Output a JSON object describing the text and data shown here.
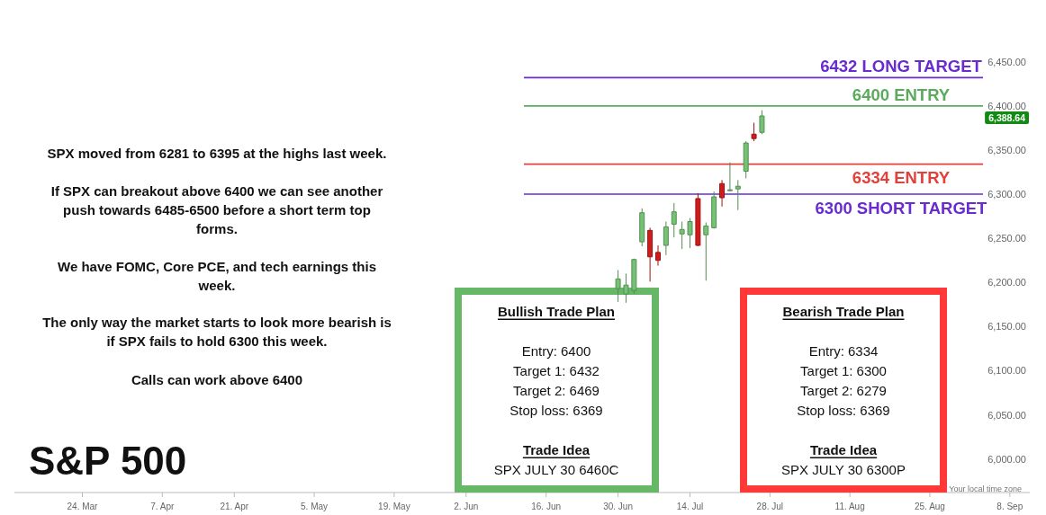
{
  "chart_data": {
    "type": "candlestick",
    "title": "S&P 500",
    "categories": [
      null,
      null,
      null,
      null,
      null,
      null,
      null,
      null,
      "24. Mar",
      null,
      null,
      null,
      null,
      null,
      null,
      null,
      null,
      null,
      "7. Apr",
      null,
      null,
      null,
      null,
      null,
      null,
      null,
      null,
      "21. Apr",
      null,
      null,
      null,
      null,
      null,
      null,
      null,
      null,
      null,
      "5. May",
      null,
      null,
      null,
      null,
      null,
      null,
      null,
      null,
      null,
      "19. May",
      null,
      null,
      null,
      null,
      null,
      null,
      null,
      null,
      "2. Jun",
      null,
      null,
      null,
      null,
      null,
      null,
      null,
      null,
      null,
      "16. Jun",
      null,
      null,
      null,
      null,
      null,
      null,
      null,
      null,
      "30. Jun",
      null,
      null,
      null,
      null,
      null,
      null,
      null,
      null,
      "14. Jul",
      null,
      null,
      null,
      null,
      null,
      null,
      null,
      null,
      null,
      "28. Jul",
      null,
      null,
      null,
      null,
      null,
      null,
      null,
      null,
      null,
      "11. Aug",
      null,
      null,
      null,
      null,
      null,
      null,
      null,
      null,
      null,
      "25. Aug",
      null,
      null,
      null,
      null,
      null,
      null,
      null,
      null,
      null,
      "8. Sep",
      null,
      null
    ],
    "ohlc": [
      null,
      null,
      null,
      null,
      null,
      null,
      null,
      null,
      null,
      null,
      null,
      null,
      null,
      null,
      null,
      null,
      null,
      null,
      null,
      null,
      null,
      null,
      null,
      null,
      null,
      null,
      null,
      null,
      null,
      null,
      null,
      null,
      null,
      null,
      null,
      null,
      null,
      null,
      null,
      null,
      null,
      null,
      null,
      null,
      null,
      null,
      null,
      null,
      null,
      null,
      null,
      null,
      null,
      null,
      null,
      null,
      null,
      null,
      null,
      null,
      null,
      null,
      null,
      null,
      null,
      null,
      null,
      null,
      null,
      null,
      null,
      null,
      null,
      null,
      null,
      [
        6193,
        6214,
        6178,
        6204
      ],
      [
        6187,
        6210,
        6177,
        6197
      ],
      [
        6191,
        6227,
        6187,
        6226
      ],
      [
        6246,
        6284,
        6241,
        6279
      ],
      [
        6259,
        6262,
        6201,
        6229
      ],
      [
        6234,
        6242,
        6219,
        6225
      ],
      [
        6242,
        6269,
        6231,
        6263
      ],
      [
        6266,
        6290,
        6251,
        6280
      ],
      [
        6255,
        6269,
        6238,
        6260
      ],
      [
        6254,
        6273,
        6239,
        6269
      ],
      [
        6295,
        6301,
        6241,
        6242
      ],
      [
        6254,
        6268,
        6202,
        6264
      ],
      [
        6262,
        6303,
        6261,
        6297
      ],
      [
        6312,
        6316,
        6286,
        6296
      ],
      [
        6304,
        6336,
        6303,
        6305
      ],
      [
        6306,
        6316,
        6282,
        6309
      ],
      [
        6326,
        6360,
        6318,
        6358
      ],
      [
        6368,
        6381,
        6360,
        6363
      ],
      [
        6370,
        6395,
        6368,
        6388.64
      ],
      null,
      null,
      null,
      null,
      null,
      null,
      null,
      null,
      null,
      null,
      null,
      null,
      null,
      null,
      null,
      null,
      null,
      null,
      null,
      null,
      null,
      null,
      null,
      null,
      null,
      null,
      null,
      null,
      null,
      null,
      null,
      null,
      null
    ],
    "colors": [
      null,
      null,
      null,
      null,
      null,
      null,
      null,
      null,
      null,
      null,
      null,
      null,
      null,
      null,
      null,
      null,
      null,
      null,
      null,
      null,
      null,
      null,
      null,
      null,
      null,
      null,
      null,
      null,
      null,
      null,
      null,
      null,
      null,
      null,
      null,
      null,
      null,
      null,
      null,
      null,
      null,
      null,
      null,
      null,
      null,
      null,
      null,
      null,
      null,
      null,
      null,
      null,
      null,
      null,
      null,
      null,
      null,
      null,
      null,
      null,
      null,
      null,
      null,
      null,
      null,
      null,
      null,
      null,
      null,
      null,
      null,
      null,
      null,
      null,
      null,
      "#74c374",
      "#74c374",
      "#74c374",
      "#74c374",
      "#d11b1b",
      "#d11b1b",
      "#74c374",
      "#74c374",
      "#74c374",
      "#74c374",
      "#d11b1b",
      "#74c374",
      "#74c374",
      "#d11b1b",
      "#74c374",
      "#74c374",
      "#74c374",
      "#d11b1b",
      "#74c374",
      null,
      null,
      null,
      null,
      null,
      null,
      null,
      null,
      null,
      null,
      null,
      null,
      null,
      null,
      null,
      null,
      null,
      null,
      null,
      null,
      null,
      null,
      null,
      null,
      null,
      null,
      null,
      null,
      null,
      null,
      null,
      null,
      null
    ],
    "ylim": [
      5962,
      6520
    ],
    "yticks": [
      {
        "value": 6000,
        "label": "6,000.00"
      },
      {
        "value": 6050,
        "label": "6,050.00"
      },
      {
        "value": 6100,
        "label": "6,100.00"
      },
      {
        "value": 6150,
        "label": "6,150.00"
      },
      {
        "value": 6200,
        "label": "6,200.00"
      },
      {
        "value": 6250,
        "label": "6,250.00"
      },
      {
        "value": 6300,
        "label": "6,300.00"
      },
      {
        "value": 6350,
        "label": "6,350.00"
      },
      {
        "value": 6400,
        "label": "6,400.00"
      },
      {
        "value": 6450,
        "label": "6,450.00"
      }
    ],
    "ref_lines": [
      {
        "axis": "y",
        "value": 6432,
        "label": "6432 LONG TARGET",
        "color": "#6a2bd0"
      },
      {
        "axis": "y",
        "value": 6400,
        "label": "6400 ENTRY",
        "color": "#5cab5c"
      },
      {
        "axis": "y",
        "value": 6334,
        "label": "6334 ENTRY",
        "color": "#e0413a"
      },
      {
        "axis": "y",
        "value": 6300,
        "label": "6300 SHORT TARGET",
        "color": "#6a2bd0"
      }
    ],
    "annotations": [
      "SPX moved from 6281 to 6395 at the highs last week.",
      "If SPX can breakout above 6400 we can see another push towards 6485-6500 before a short term top forms.",
      "We have FOMC, Core PCE, and tech earnings this week.",
      "The only way the market starts to look more bearish is if SPX fails to hold 6300 this week.",
      "Calls can work above 6400",
      "Bullish Trade Plan",
      "Entry: 6400",
      "Target 1: 6432",
      "Target 2: 6469",
      "Stop loss: 6369",
      "Trade Idea",
      "SPX JULY 30 6460C",
      "Bearish Trade Plan",
      "Entry: 6334",
      "Target 1: 6300",
      "Target 2: 6279",
      "Stop loss: 6369",
      "Trade Idea",
      "SPX JULY 30 6300P",
      "Your local time zone",
      "6,388.64"
    ]
  }
}
